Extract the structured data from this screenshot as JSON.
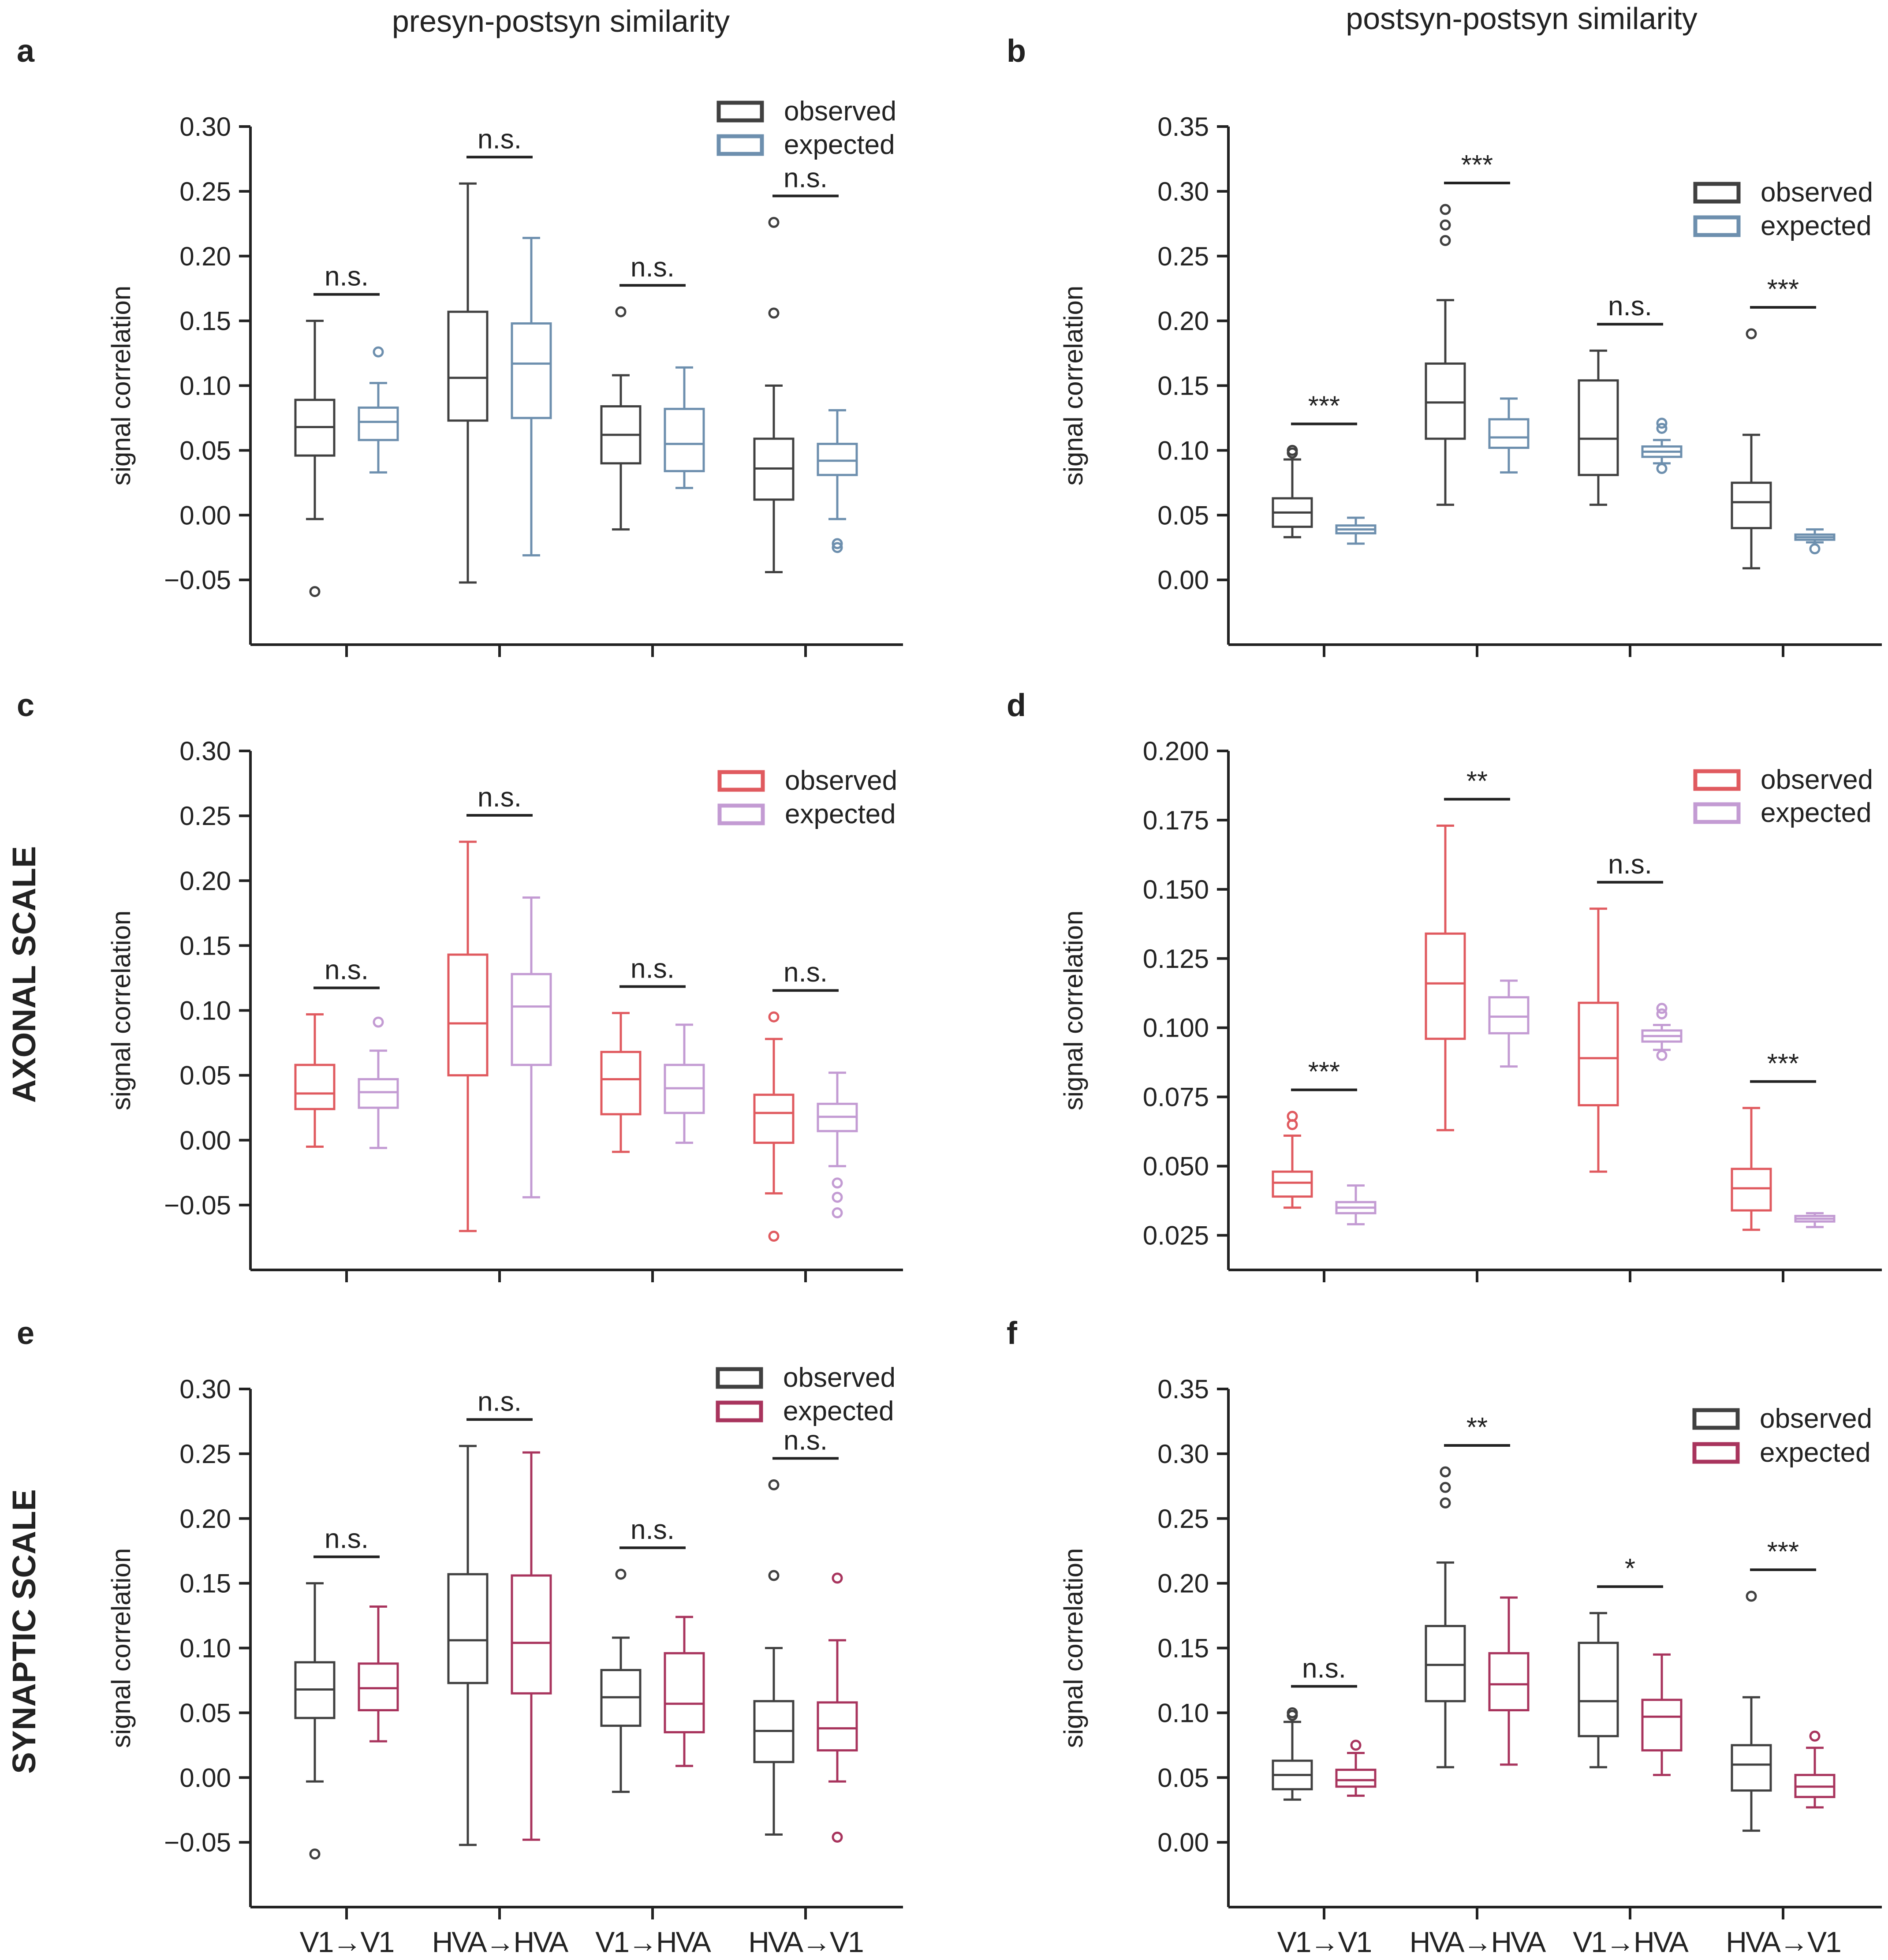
{
  "column_titles": [
    "presyn-postsyn similarity",
    "postsyn-postsyn similarity"
  ],
  "row_labels": [
    "AXONAL SCALE",
    "SYNAPTIC SCALE"
  ],
  "categories": [
    "V1→V1",
    "HVA→HVA",
    "V1→HVA",
    "HVA→V1"
  ],
  "chart_data": [
    {
      "panel": "a",
      "type": "box",
      "ylabel": "signal correlation",
      "ylim": [
        -0.1,
        0.3
      ],
      "yticks": [
        0.3,
        0.25,
        0.2,
        0.15,
        0.1,
        0.05,
        0.0,
        -0.05
      ],
      "categories": [
        "V1→V1",
        "HVA→HVA",
        "V1→HVA",
        "HVA→V1"
      ],
      "legend": [
        "observed",
        "expected"
      ],
      "colors": {
        "observed": "#404040",
        "expected": "#6d8fae"
      },
      "significance": [
        "n.s.",
        "n.s.",
        "n.s.",
        "n.s."
      ],
      "series": [
        {
          "name": "observed",
          "boxes": [
            {
              "whislo": -0.003,
              "q1": 0.046,
              "med": 0.068,
              "q3": 0.089,
              "whishi": 0.15,
              "fliers": [
                -0.059
              ]
            },
            {
              "whislo": -0.052,
              "q1": 0.073,
              "med": 0.106,
              "q3": 0.157,
              "whishi": 0.256,
              "fliers": []
            },
            {
              "whislo": -0.011,
              "q1": 0.04,
              "med": 0.062,
              "q3": 0.084,
              "whishi": 0.108,
              "fliers": [
                0.157
              ]
            },
            {
              "whislo": -0.044,
              "q1": 0.012,
              "med": 0.036,
              "q3": 0.059,
              "whishi": 0.1,
              "fliers": [
                0.156,
                0.226
              ]
            }
          ]
        },
        {
          "name": "expected",
          "boxes": [
            {
              "whislo": 0.033,
              "q1": 0.058,
              "med": 0.072,
              "q3": 0.083,
              "whishi": 0.102,
              "fliers": [
                0.126
              ]
            },
            {
              "whislo": -0.031,
              "q1": 0.075,
              "med": 0.117,
              "q3": 0.148,
              "whishi": 0.214,
              "fliers": []
            },
            {
              "whislo": 0.021,
              "q1": 0.034,
              "med": 0.055,
              "q3": 0.082,
              "whishi": 0.114,
              "fliers": []
            },
            {
              "whislo": -0.003,
              "q1": 0.031,
              "med": 0.042,
              "q3": 0.055,
              "whishi": 0.081,
              "fliers": [
                -0.022,
                -0.025
              ]
            }
          ]
        }
      ]
    },
    {
      "panel": "b",
      "type": "box",
      "ylabel": "signal correlation",
      "ylim": [
        -0.05,
        0.35
      ],
      "yticks": [
        0.35,
        0.3,
        0.25,
        0.2,
        0.15,
        0.1,
        0.05,
        0.0
      ],
      "categories": [
        "V1→V1",
        "HVA→HVA",
        "V1→HVA",
        "HVA→V1"
      ],
      "legend": [
        "observed",
        "expected"
      ],
      "colors": {
        "observed": "#404040",
        "expected": "#6d8fae"
      },
      "significance": [
        "***",
        "***",
        "n.s.",
        "***"
      ],
      "series": [
        {
          "name": "observed",
          "boxes": [
            {
              "whislo": 0.033,
              "q1": 0.041,
              "med": 0.052,
              "q3": 0.063,
              "whishi": 0.093,
              "fliers": [
                0.098,
                0.1
              ]
            },
            {
              "whislo": 0.058,
              "q1": 0.109,
              "med": 0.137,
              "q3": 0.167,
              "whishi": 0.216,
              "fliers": [
                0.262,
                0.274,
                0.286
              ]
            },
            {
              "whislo": 0.058,
              "q1": 0.081,
              "med": 0.109,
              "q3": 0.154,
              "whishi": 0.177,
              "fliers": []
            },
            {
              "whislo": 0.009,
              "q1": 0.04,
              "med": 0.06,
              "q3": 0.075,
              "whishi": 0.112,
              "fliers": [
                0.19
              ]
            }
          ]
        },
        {
          "name": "expected",
          "boxes": [
            {
              "whislo": 0.028,
              "q1": 0.036,
              "med": 0.039,
              "q3": 0.042,
              "whishi": 0.048,
              "fliers": []
            },
            {
              "whislo": 0.083,
              "q1": 0.102,
              "med": 0.11,
              "q3": 0.124,
              "whishi": 0.14,
              "fliers": []
            },
            {
              "whislo": 0.09,
              "q1": 0.095,
              "med": 0.099,
              "q3": 0.103,
              "whishi": 0.108,
              "fliers": [
                0.086,
                0.117,
                0.121
              ]
            },
            {
              "whislo": 0.029,
              "q1": 0.031,
              "med": 0.033,
              "q3": 0.035,
              "whishi": 0.039,
              "fliers": [
                0.024
              ]
            }
          ]
        }
      ]
    },
    {
      "panel": "c",
      "type": "box",
      "ylabel": "signal correlation",
      "ylim": [
        -0.1,
        0.3
      ],
      "yticks": [
        0.3,
        0.25,
        0.2,
        0.15,
        0.1,
        0.05,
        0.0,
        -0.05
      ],
      "categories": [
        "V1→V1",
        "HVA→HVA",
        "V1→HVA",
        "HVA→V1"
      ],
      "legend": [
        "observed",
        "expected"
      ],
      "colors": {
        "observed": "#e05a5f",
        "expected": "#c39bd3"
      },
      "significance": [
        "n.s.",
        "n.s.",
        "n.s.",
        "n.s."
      ],
      "series": [
        {
          "name": "observed",
          "boxes": [
            {
              "whislo": -0.005,
              "q1": 0.024,
              "med": 0.036,
              "q3": 0.058,
              "whishi": 0.097,
              "fliers": []
            },
            {
              "whislo": -0.07,
              "q1": 0.05,
              "med": 0.09,
              "q3": 0.143,
              "whishi": 0.23,
              "fliers": []
            },
            {
              "whislo": -0.009,
              "q1": 0.02,
              "med": 0.047,
              "q3": 0.068,
              "whishi": 0.098,
              "fliers": []
            },
            {
              "whislo": -0.041,
              "q1": -0.002,
              "med": 0.021,
              "q3": 0.035,
              "whishi": 0.078,
              "fliers": [
                0.095,
                -0.074
              ]
            }
          ]
        },
        {
          "name": "expected",
          "boxes": [
            {
              "whislo": -0.006,
              "q1": 0.025,
              "med": 0.037,
              "q3": 0.047,
              "whishi": 0.069,
              "fliers": [
                0.091
              ]
            },
            {
              "whislo": -0.044,
              "q1": 0.058,
              "med": 0.103,
              "q3": 0.128,
              "whishi": 0.187,
              "fliers": []
            },
            {
              "whislo": -0.002,
              "q1": 0.021,
              "med": 0.04,
              "q3": 0.058,
              "whishi": 0.089,
              "fliers": []
            },
            {
              "whislo": -0.02,
              "q1": 0.007,
              "med": 0.018,
              "q3": 0.028,
              "whishi": 0.052,
              "fliers": [
                -0.033,
                -0.044,
                -0.056
              ]
            }
          ]
        }
      ]
    },
    {
      "panel": "d",
      "type": "box",
      "ylabel": "signal correlation",
      "ylim": [
        0.0125,
        0.2
      ],
      "yticks": [
        0.2,
        0.175,
        0.15,
        0.125,
        0.1,
        0.075,
        0.05,
        0.025
      ],
      "categories": [
        "V1→V1",
        "HVA→HVA",
        "V1→HVA",
        "HVA→V1"
      ],
      "legend": [
        "observed",
        "expected"
      ],
      "colors": {
        "observed": "#e05a5f",
        "expected": "#c39bd3"
      },
      "significance": [
        "***",
        "**",
        "n.s.",
        "***"
      ],
      "series": [
        {
          "name": "observed",
          "boxes": [
            {
              "whislo": 0.035,
              "q1": 0.039,
              "med": 0.044,
              "q3": 0.048,
              "whishi": 0.061,
              "fliers": [
                0.065,
                0.068
              ]
            },
            {
              "whislo": 0.063,
              "q1": 0.096,
              "med": 0.116,
              "q3": 0.134,
              "whishi": 0.173,
              "fliers": []
            },
            {
              "whislo": 0.048,
              "q1": 0.072,
              "med": 0.089,
              "q3": 0.109,
              "whishi": 0.143,
              "fliers": []
            },
            {
              "whislo": 0.027,
              "q1": 0.034,
              "med": 0.042,
              "q3": 0.049,
              "whishi": 0.071,
              "fliers": []
            }
          ]
        },
        {
          "name": "expected",
          "boxes": [
            {
              "whislo": 0.029,
              "q1": 0.033,
              "med": 0.035,
              "q3": 0.037,
              "whishi": 0.043,
              "fliers": []
            },
            {
              "whislo": 0.086,
              "q1": 0.098,
              "med": 0.104,
              "q3": 0.111,
              "whishi": 0.117,
              "fliers": []
            },
            {
              "whislo": 0.092,
              "q1": 0.095,
              "med": 0.097,
              "q3": 0.099,
              "whishi": 0.101,
              "fliers": [
                0.09,
                0.105,
                0.107
              ]
            },
            {
              "whislo": 0.028,
              "q1": 0.03,
              "med": 0.031,
              "q3": 0.032,
              "whishi": 0.033,
              "fliers": []
            }
          ]
        }
      ]
    },
    {
      "panel": "e",
      "type": "box",
      "ylabel": "signal correlation",
      "ylim": [
        -0.1,
        0.3
      ],
      "yticks": [
        0.3,
        0.25,
        0.2,
        0.15,
        0.1,
        0.05,
        0.0,
        -0.05
      ],
      "categories": [
        "V1→V1",
        "HVA→HVA",
        "V1→HVA",
        "HVA→V1"
      ],
      "legend": [
        "observed",
        "expected"
      ],
      "colors": {
        "observed": "#404040",
        "expected": "#a8345d"
      },
      "significance": [
        "n.s.",
        "n.s.",
        "n.s.",
        "n.s."
      ],
      "series": [
        {
          "name": "observed",
          "boxes": [
            {
              "whislo": -0.003,
              "q1": 0.046,
              "med": 0.068,
              "q3": 0.089,
              "whishi": 0.15,
              "fliers": [
                -0.059
              ]
            },
            {
              "whislo": -0.052,
              "q1": 0.073,
              "med": 0.106,
              "q3": 0.157,
              "whishi": 0.256,
              "fliers": []
            },
            {
              "whislo": -0.011,
              "q1": 0.04,
              "med": 0.062,
              "q3": 0.083,
              "whishi": 0.108,
              "fliers": [
                0.157
              ]
            },
            {
              "whislo": -0.044,
              "q1": 0.012,
              "med": 0.036,
              "q3": 0.059,
              "whishi": 0.1,
              "fliers": [
                0.156,
                0.226
              ]
            }
          ]
        },
        {
          "name": "expected",
          "boxes": [
            {
              "whislo": 0.028,
              "q1": 0.052,
              "med": 0.069,
              "q3": 0.088,
              "whishi": 0.132,
              "fliers": []
            },
            {
              "whislo": -0.048,
              "q1": 0.065,
              "med": 0.104,
              "q3": 0.156,
              "whishi": 0.251,
              "fliers": []
            },
            {
              "whislo": 0.009,
              "q1": 0.035,
              "med": 0.057,
              "q3": 0.096,
              "whishi": 0.124,
              "fliers": []
            },
            {
              "whislo": -0.003,
              "q1": 0.021,
              "med": 0.038,
              "q3": 0.058,
              "whishi": 0.106,
              "fliers": [
                0.154,
                -0.046
              ]
            }
          ]
        }
      ]
    },
    {
      "panel": "f",
      "type": "box",
      "ylabel": "signal correlation",
      "ylim": [
        -0.05,
        0.35
      ],
      "yticks": [
        0.35,
        0.3,
        0.25,
        0.2,
        0.15,
        0.1,
        0.05,
        0.0
      ],
      "categories": [
        "V1→V1",
        "HVA→HVA",
        "V1→HVA",
        "HVA→V1"
      ],
      "legend": [
        "observed",
        "expected"
      ],
      "colors": {
        "observed": "#404040",
        "expected": "#a8345d"
      },
      "significance": [
        "n.s.",
        "**",
        "*",
        "***"
      ],
      "series": [
        {
          "name": "observed",
          "boxes": [
            {
              "whislo": 0.033,
              "q1": 0.041,
              "med": 0.052,
              "q3": 0.063,
              "whishi": 0.093,
              "fliers": [
                0.098,
                0.1
              ]
            },
            {
              "whislo": 0.058,
              "q1": 0.109,
              "med": 0.137,
              "q3": 0.167,
              "whishi": 0.216,
              "fliers": [
                0.262,
                0.274,
                0.286
              ]
            },
            {
              "whislo": 0.058,
              "q1": 0.082,
              "med": 0.109,
              "q3": 0.154,
              "whishi": 0.177,
              "fliers": []
            },
            {
              "whislo": 0.009,
              "q1": 0.04,
              "med": 0.06,
              "q3": 0.075,
              "whishi": 0.112,
              "fliers": [
                0.19
              ]
            }
          ]
        },
        {
          "name": "expected",
          "boxes": [
            {
              "whislo": 0.036,
              "q1": 0.043,
              "med": 0.048,
              "q3": 0.056,
              "whishi": 0.069,
              "fliers": [
                0.075
              ]
            },
            {
              "whislo": 0.06,
              "q1": 0.102,
              "med": 0.122,
              "q3": 0.146,
              "whishi": 0.189,
              "fliers": []
            },
            {
              "whislo": 0.052,
              "q1": 0.071,
              "med": 0.097,
              "q3": 0.11,
              "whishi": 0.145,
              "fliers": []
            },
            {
              "whislo": 0.027,
              "q1": 0.035,
              "med": 0.043,
              "q3": 0.052,
              "whishi": 0.073,
              "fliers": [
                0.082
              ]
            }
          ]
        }
      ]
    }
  ]
}
